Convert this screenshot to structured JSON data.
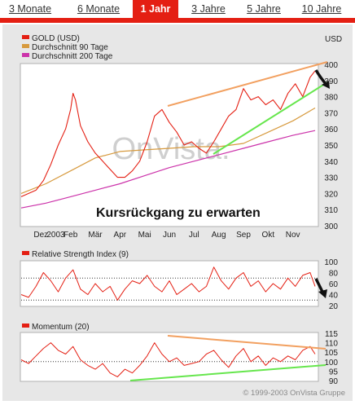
{
  "tabs": [
    {
      "label": "3 Monate",
      "active": false
    },
    {
      "label": "6 Monate",
      "active": false
    },
    {
      "label": "1 Jahr",
      "active": true
    },
    {
      "label": "3 Jahre",
      "active": false
    },
    {
      "label": "5 Jahre",
      "active": false
    },
    {
      "label": "10 Jahre",
      "active": false
    }
  ],
  "colors": {
    "accent": "#e41f13",
    "price": "#e41f13",
    "ma90": "#d79a3e",
    "ma200": "#cc33aa",
    "trend_up": "#f2a060",
    "trend_support": "#66e64d",
    "arrow": "#111111",
    "panel": "#e7e7e7"
  },
  "watermark": "OnVista.",
  "copyright": "© 1999-2003 OnVista Gruppe",
  "chart_data": [
    {
      "type": "line",
      "unit": "USD",
      "legend": [
        "GOLD (USD)",
        "Durchschnitt 90 Tage",
        "Durchschnitt 200 Tage"
      ],
      "annotation": "Kursrückgang zu erwarten",
      "x_tick_labels": [
        "Dez",
        "2003",
        "Feb",
        "Mär",
        "Apr",
        "Mai",
        "Jun",
        "Jul",
        "Aug",
        "Sep",
        "Okt",
        "Nov"
      ],
      "x_tick_pos": [
        0.8,
        1.4,
        2.0,
        3.0,
        4.0,
        5.0,
        6.0,
        7.0,
        8.0,
        9.0,
        10.0,
        11.0
      ],
      "y_ticks": [
        300,
        310,
        320,
        330,
        340,
        350,
        360,
        370,
        380,
        390,
        400
      ],
      "ylim": [
        300,
        400
      ],
      "xlim": [
        0,
        12
      ],
      "grid": false,
      "series": [
        {
          "name": "GOLD (USD)",
          "x": [
            0,
            0.3,
            0.6,
            0.9,
            1.2,
            1.5,
            1.8,
            2.0,
            2.1,
            2.2,
            2.4,
            2.7,
            3.0,
            3.3,
            3.6,
            3.9,
            4.2,
            4.5,
            4.8,
            5.1,
            5.4,
            5.7,
            6.0,
            6.3,
            6.6,
            6.9,
            7.2,
            7.5,
            7.8,
            8.1,
            8.4,
            8.7,
            9.0,
            9.3,
            9.6,
            9.9,
            10.2,
            10.5,
            10.8,
            11.1,
            11.4,
            11.7,
            11.9
          ],
          "y": [
            318,
            320,
            322,
            328,
            338,
            350,
            360,
            372,
            382,
            378,
            362,
            352,
            345,
            340,
            335,
            330,
            330,
            334,
            340,
            352,
            368,
            372,
            364,
            358,
            350,
            352,
            348,
            345,
            352,
            360,
            368,
            372,
            385,
            378,
            380,
            375,
            378,
            372,
            382,
            388,
            380,
            392,
            396
          ]
        },
        {
          "name": "Durchschnitt 90 Tage",
          "x": [
            0,
            1,
            2,
            3,
            4,
            5,
            6,
            7,
            8,
            9,
            10,
            11,
            11.9
          ],
          "y": [
            320,
            326,
            334,
            342,
            346,
            347,
            348,
            349,
            349,
            351,
            358,
            365,
            373
          ]
        },
        {
          "name": "Durchschnitt 200 Tage",
          "x": [
            0,
            1,
            2,
            3,
            4,
            5,
            6,
            7,
            8,
            9,
            10,
            11,
            11.9
          ],
          "y": [
            311,
            314,
            318,
            322,
            326,
            331,
            336,
            340,
            344,
            348,
            352,
            356,
            359
          ]
        }
      ]
    },
    {
      "type": "line",
      "title": "Relative Strength Index (9)",
      "ylim": [
        20,
        100
      ],
      "y_ticks": [
        20,
        40,
        60,
        80,
        100
      ],
      "reference_lines": [
        70,
        30
      ],
      "xlim": [
        0,
        12
      ],
      "series": [
        {
          "name": "Relative Strength Index (9)",
          "x": [
            0,
            0.3,
            0.6,
            0.9,
            1.2,
            1.5,
            1.8,
            2.1,
            2.4,
            2.7,
            3.0,
            3.3,
            3.6,
            3.9,
            4.2,
            4.5,
            4.8,
            5.1,
            5.4,
            5.7,
            6.0,
            6.3,
            6.6,
            6.9,
            7.2,
            7.5,
            7.8,
            8.1,
            8.4,
            8.7,
            9.0,
            9.3,
            9.6,
            9.9,
            10.2,
            10.5,
            10.8,
            11.1,
            11.4,
            11.7,
            11.9
          ],
          "y": [
            40,
            35,
            55,
            80,
            65,
            45,
            70,
            85,
            50,
            40,
            60,
            45,
            55,
            30,
            50,
            65,
            60,
            75,
            55,
            45,
            65,
            40,
            50,
            60,
            45,
            55,
            90,
            65,
            50,
            70,
            80,
            55,
            65,
            45,
            60,
            50,
            70,
            55,
            75,
            80,
            55
          ]
        }
      ]
    },
    {
      "type": "line",
      "title": "Momentum (20)",
      "ylim": [
        90,
        115
      ],
      "y_ticks": [
        90,
        95,
        100,
        105,
        110,
        115
      ],
      "reference_lines": [
        100
      ],
      "xlim": [
        0,
        12
      ],
      "series": [
        {
          "name": "Momentum (20)",
          "x": [
            0,
            0.3,
            0.6,
            0.9,
            1.2,
            1.5,
            1.8,
            2.1,
            2.4,
            2.7,
            3.0,
            3.3,
            3.6,
            3.9,
            4.2,
            4.5,
            4.8,
            5.1,
            5.4,
            5.7,
            6.0,
            6.3,
            6.6,
            6.9,
            7.2,
            7.5,
            7.8,
            8.1,
            8.4,
            8.7,
            9.0,
            9.3,
            9.6,
            9.9,
            10.2,
            10.5,
            10.8,
            11.1,
            11.4,
            11.7,
            11.9
          ],
          "y": [
            101,
            99,
            103,
            107,
            110,
            106,
            104,
            108,
            101,
            98,
            96,
            99,
            94,
            92,
            96,
            94,
            98,
            103,
            110,
            104,
            100,
            102,
            98,
            99,
            100,
            104,
            106,
            101,
            97,
            103,
            107,
            100,
            103,
            98,
            102,
            100,
            103,
            101,
            106,
            108,
            104
          ]
        }
      ]
    }
  ]
}
